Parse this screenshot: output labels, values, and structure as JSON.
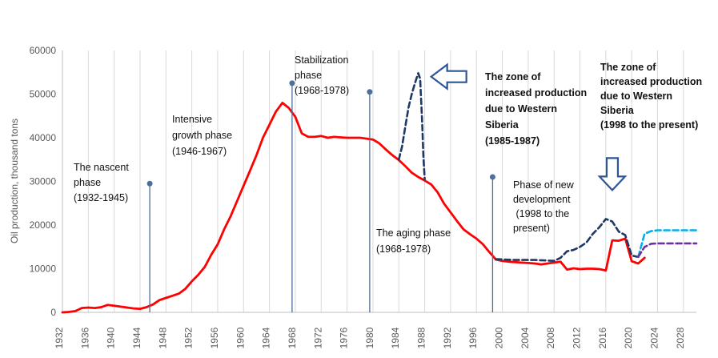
{
  "chart_data": {
    "type": "line",
    "ylabel": "Oil production, thousand  tons",
    "xlim": [
      1932,
      2030
    ],
    "ylim": [
      0,
      60000
    ],
    "x_ticks": [
      1932,
      1936,
      1940,
      1944,
      1948,
      1952,
      1956,
      1960,
      1964,
      1968,
      1972,
      1976,
      1980,
      1984,
      1988,
      1992,
      1996,
      2000,
      2004,
      2008,
      2012,
      2016,
      2020,
      2024,
      2028
    ],
    "y_ticks": [
      0,
      10000,
      20000,
      30000,
      40000,
      50000,
      60000
    ],
    "grid": "vertical",
    "series": [
      {
        "style": "solid",
        "color": "#ff0000",
        "points": [
          [
            1932,
            0
          ],
          [
            1933,
            100
          ],
          [
            1934,
            300
          ],
          [
            1935,
            1000
          ],
          [
            1936,
            1100
          ],
          [
            1937,
            1000
          ],
          [
            1938,
            1200
          ],
          [
            1939,
            1700
          ],
          [
            1940,
            1500
          ],
          [
            1941,
            1300
          ],
          [
            1942,
            1100
          ],
          [
            1943,
            900
          ],
          [
            1944,
            800
          ],
          [
            1945,
            1200
          ],
          [
            1946,
            1800
          ],
          [
            1947,
            2800
          ],
          [
            1948,
            3300
          ],
          [
            1949,
            3800
          ],
          [
            1950,
            4300
          ],
          [
            1951,
            5400
          ],
          [
            1952,
            7100
          ],
          [
            1953,
            8600
          ],
          [
            1954,
            10400
          ],
          [
            1955,
            13200
          ],
          [
            1956,
            15600
          ],
          [
            1957,
            19000
          ],
          [
            1958,
            22000
          ],
          [
            1959,
            25500
          ],
          [
            1960,
            29000
          ],
          [
            1961,
            32500
          ],
          [
            1962,
            36000
          ],
          [
            1963,
            40000
          ],
          [
            1964,
            43000
          ],
          [
            1965,
            46000
          ],
          [
            1966,
            48000
          ],
          [
            1967,
            46800
          ],
          [
            1968,
            44800
          ],
          [
            1969,
            41000
          ],
          [
            1970,
            40200
          ],
          [
            1971,
            40200
          ],
          [
            1972,
            40400
          ],
          [
            1973,
            40000
          ],
          [
            1974,
            40200
          ],
          [
            1975,
            40100
          ],
          [
            1976,
            40000
          ],
          [
            1977,
            40000
          ],
          [
            1978,
            40000
          ],
          [
            1979,
            39800
          ],
          [
            1980,
            39600
          ],
          [
            1981,
            38700
          ],
          [
            1982,
            37300
          ],
          [
            1983,
            36000
          ],
          [
            1984,
            34900
          ],
          [
            1985,
            33500
          ],
          [
            1986,
            32000
          ],
          [
            1987,
            31000
          ],
          [
            1988,
            30200
          ],
          [
            1989,
            29300
          ],
          [
            1990,
            27500
          ],
          [
            1991,
            24900
          ],
          [
            1992,
            22900
          ],
          [
            1993,
            20900
          ],
          [
            1994,
            19000
          ],
          [
            1995,
            17900
          ],
          [
            1996,
            16900
          ],
          [
            1997,
            15600
          ],
          [
            1998,
            13800
          ],
          [
            1999,
            12100
          ],
          [
            2000,
            11800
          ],
          [
            2001,
            11600
          ],
          [
            2002,
            11500
          ],
          [
            2003,
            11400
          ],
          [
            2004,
            11300
          ],
          [
            2005,
            11200
          ],
          [
            2006,
            11000
          ],
          [
            2007,
            11200
          ],
          [
            2008,
            11400
          ],
          [
            2009,
            11600
          ],
          [
            2010,
            9800
          ],
          [
            2011,
            10100
          ],
          [
            2012,
            9900
          ],
          [
            2013,
            10000
          ],
          [
            2014,
            10000
          ],
          [
            2015,
            9900
          ],
          [
            2016,
            9600
          ],
          [
            2017,
            16500
          ],
          [
            2018,
            16400
          ],
          [
            2019,
            16900
          ],
          [
            2020,
            11700
          ],
          [
            2021,
            11200
          ],
          [
            2022,
            12500
          ]
        ]
      },
      {
        "style": "dashed",
        "color": "#1f3864",
        "points": [
          [
            1984,
            35000
          ],
          [
            1984.5,
            38000
          ],
          [
            1985,
            42500
          ],
          [
            1985.5,
            47000
          ],
          [
            1986,
            50000
          ],
          [
            1986.5,
            52500
          ],
          [
            1987,
            54800
          ],
          [
            1987.3,
            53500
          ],
          [
            1987.6,
            44000
          ],
          [
            1987.8,
            35500
          ],
          [
            1988,
            30500
          ]
        ]
      },
      {
        "style": "dashed",
        "color": "#1f3864",
        "points": [
          [
            1999,
            12200
          ],
          [
            2002,
            12000
          ],
          [
            2005,
            12000
          ],
          [
            2008,
            11800
          ],
          [
            2009,
            12500
          ],
          [
            2010,
            14000
          ],
          [
            2011,
            14300
          ],
          [
            2012,
            15000
          ],
          [
            2013,
            16000
          ],
          [
            2014,
            18000
          ],
          [
            2015,
            19500
          ],
          [
            2016,
            21400
          ],
          [
            2017,
            20800
          ],
          [
            2018,
            18500
          ],
          [
            2019,
            17700
          ],
          [
            2020,
            13000
          ],
          [
            2021,
            12700
          ]
        ]
      },
      {
        "style": "dashed",
        "color": "#00b0f0",
        "points": [
          [
            2021,
            12700
          ],
          [
            2022,
            18000
          ],
          [
            2023,
            18600
          ],
          [
            2024,
            18800
          ],
          [
            2027,
            18800
          ],
          [
            2030,
            18800
          ]
        ]
      },
      {
        "style": "dashed",
        "color": "#7030a0",
        "points": [
          [
            2021,
            12700
          ],
          [
            2022,
            15000
          ],
          [
            2023,
            15700
          ],
          [
            2024,
            15800
          ],
          [
            2027,
            15800
          ],
          [
            2030,
            15800
          ]
        ]
      }
    ],
    "markers": [
      {
        "x": 1945.5,
        "y": 29500
      },
      {
        "x": 1967.5,
        "y": 52500
      },
      {
        "x": 1979.5,
        "y": 50500
      },
      {
        "x": 1998.5,
        "y": 31000
      }
    ],
    "arrows": [
      {
        "direction": "left",
        "x": 1989,
        "y": 54000
      },
      {
        "direction": "down",
        "x": 2017,
        "y": 28000
      }
    ],
    "annotations": [
      {
        "lines": [
          "The nascent",
          "phase",
          "(1932-1945)"
        ],
        "bold": false
      },
      {
        "lines": [
          "Intensive",
          "growth phase",
          "(1946-1967)"
        ],
        "bold": false
      },
      {
        "lines": [
          "Stabilization",
          "phase",
          "(1968-1978)"
        ],
        "bold": false
      },
      {
        "lines": [
          "The zone of",
          "increased production",
          "due to Western",
          "Siberia",
          "(1985-1987)"
        ],
        "bold": true
      },
      {
        "lines": [
          "The aging phase",
          "(1968-1978)"
        ],
        "bold": false
      },
      {
        "lines": [
          "Phase of new",
          "development",
          " (1998 to the",
          "present)"
        ],
        "bold": false
      },
      {
        "lines": [
          "The zone of",
          "increased production",
          "due to Western",
          "Siberia",
          "(1998 to the present)"
        ],
        "bold": true
      }
    ]
  }
}
